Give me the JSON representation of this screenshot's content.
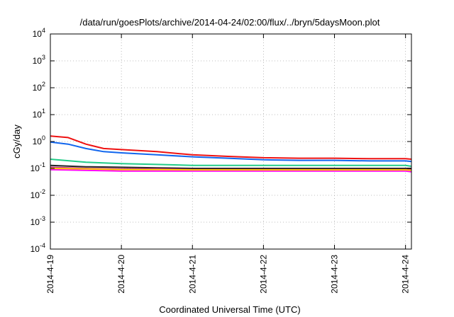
{
  "chart_data": {
    "type": "line",
    "title": "/data/run/goesPlots/archive/2014-04-24/02:00/flux/../bryn/5daysMoon.plot",
    "xlabel": "Coordinated Universal Time (UTC)",
    "ylabel": "cGy/day",
    "yscale": "log",
    "ylim": [
      0.0001,
      10000
    ],
    "xlim": [
      "2014-04-19",
      "2014-04-24 02:00"
    ],
    "x_ticks": [
      "2014-4-19",
      "2014-4-20",
      "2014-4-21",
      "2014-4-22",
      "2014-4-23",
      "2014-4-24"
    ],
    "y_ticks": [
      {
        "base": "10",
        "exp": "-4",
        "value": 0.0001
      },
      {
        "base": "10",
        "exp": "-3",
        "value": 0.001
      },
      {
        "base": "10",
        "exp": "-2",
        "value": 0.01
      },
      {
        "base": "10",
        "exp": "-1",
        "value": 0.1
      },
      {
        "base": "10",
        "exp": "0",
        "value": 1
      },
      {
        "base": "10",
        "exp": "1",
        "value": 10
      },
      {
        "base": "10",
        "exp": "2",
        "value": 100
      },
      {
        "base": "10",
        "exp": "3",
        "value": 1000
      },
      {
        "base": "10",
        "exp": "4",
        "value": 10000
      }
    ],
    "grid": true,
    "legend": "none",
    "series": [
      {
        "color": "#ee1111",
        "x": [
          "2014-04-19 00:00",
          "2014-04-19 06:00",
          "2014-04-19 12:00",
          "2014-04-19 18:00",
          "2014-04-20 00:00",
          "2014-04-20 12:00",
          "2014-04-21 00:00",
          "2014-04-21 12:00",
          "2014-04-22 00:00",
          "2014-04-22 12:00",
          "2014-04-23 00:00",
          "2014-04-23 12:00",
          "2014-04-24 00:00",
          "2014-04-24 02:00"
        ],
        "values": [
          1.6,
          1.4,
          0.8,
          0.55,
          0.5,
          0.42,
          0.32,
          0.28,
          0.25,
          0.24,
          0.24,
          0.23,
          0.23,
          0.22
        ]
      },
      {
        "color": "#1166ee",
        "x": [
          "2014-04-19 00:00",
          "2014-04-19 06:00",
          "2014-04-19 12:00",
          "2014-04-19 18:00",
          "2014-04-20 00:00",
          "2014-04-20 12:00",
          "2014-04-21 00:00",
          "2014-04-21 12:00",
          "2014-04-22 00:00",
          "2014-04-22 12:00",
          "2014-04-23 00:00",
          "2014-04-23 12:00",
          "2014-04-24 00:00",
          "2014-04-24 02:00"
        ],
        "values": [
          0.95,
          0.8,
          0.55,
          0.42,
          0.38,
          0.32,
          0.27,
          0.24,
          0.21,
          0.2,
          0.2,
          0.19,
          0.19,
          0.18
        ]
      },
      {
        "color": "#22cc88",
        "x": [
          "2014-04-19 00:00",
          "2014-04-19 12:00",
          "2014-04-20 00:00",
          "2014-04-20 12:00",
          "2014-04-21 00:00",
          "2014-04-21 12:00",
          "2014-04-22 00:00",
          "2014-04-22 12:00",
          "2014-04-23 00:00",
          "2014-04-23 12:00",
          "2014-04-24 00:00",
          "2014-04-24 02:00"
        ],
        "values": [
          0.22,
          0.17,
          0.15,
          0.14,
          0.13,
          0.13,
          0.13,
          0.13,
          0.13,
          0.13,
          0.13,
          0.12
        ]
      },
      {
        "color": "#222222",
        "x": [
          "2014-04-19 00:00",
          "2014-04-19 12:00",
          "2014-04-20 00:00",
          "2014-04-20 12:00",
          "2014-04-21 00:00",
          "2014-04-21 12:00",
          "2014-04-22 00:00",
          "2014-04-22 12:00",
          "2014-04-23 00:00",
          "2014-04-23 12:00",
          "2014-04-24 00:00",
          "2014-04-24 02:00"
        ],
        "values": [
          0.13,
          0.115,
          0.11,
          0.105,
          0.1,
          0.1,
          0.1,
          0.1,
          0.1,
          0.1,
          0.1,
          0.1
        ]
      },
      {
        "color": "#cc3388",
        "x": [
          "2014-04-19 00:00",
          "2014-04-19 12:00",
          "2014-04-20 00:00",
          "2014-04-20 12:00",
          "2014-04-21 00:00",
          "2014-04-21 12:00",
          "2014-04-22 00:00",
          "2014-04-22 12:00",
          "2014-04-23 00:00",
          "2014-04-23 12:00",
          "2014-04-24 00:00",
          "2014-04-24 02:00"
        ],
        "values": [
          0.11,
          0.1,
          0.095,
          0.095,
          0.09,
          0.09,
          0.09,
          0.09,
          0.09,
          0.09,
          0.09,
          0.09
        ]
      },
      {
        "color": "#ff00ff",
        "x": [
          "2014-04-19 00:00",
          "2014-04-19 12:00",
          "2014-04-20 00:00",
          "2014-04-20 12:00",
          "2014-04-21 00:00",
          "2014-04-21 12:00",
          "2014-04-22 00:00",
          "2014-04-22 12:00",
          "2014-04-23 00:00",
          "2014-04-23 12:00",
          "2014-04-24 00:00",
          "2014-04-24 02:00"
        ],
        "values": [
          0.09,
          0.085,
          0.08,
          0.08,
          0.08,
          0.08,
          0.08,
          0.08,
          0.08,
          0.08,
          0.08,
          0.075
        ]
      },
      {
        "color": "#ffcc00",
        "x": [
          "2014-04-19 00:00",
          "2014-04-19 12:00",
          "2014-04-20 00:00",
          "2014-04-20 12:00",
          "2014-04-21 00:00",
          "2014-04-21 12:00",
          "2014-04-22 00:00",
          "2014-04-22 12:00",
          "2014-04-23 00:00",
          "2014-04-23 12:00",
          "2014-04-24 00:00",
          "2014-04-24 02:00"
        ],
        "values": [
          0.1,
          0.095,
          0.09,
          0.09,
          0.088,
          0.088,
          0.088,
          0.088,
          0.088,
          0.088,
          0.088,
          0.085
        ]
      }
    ]
  }
}
